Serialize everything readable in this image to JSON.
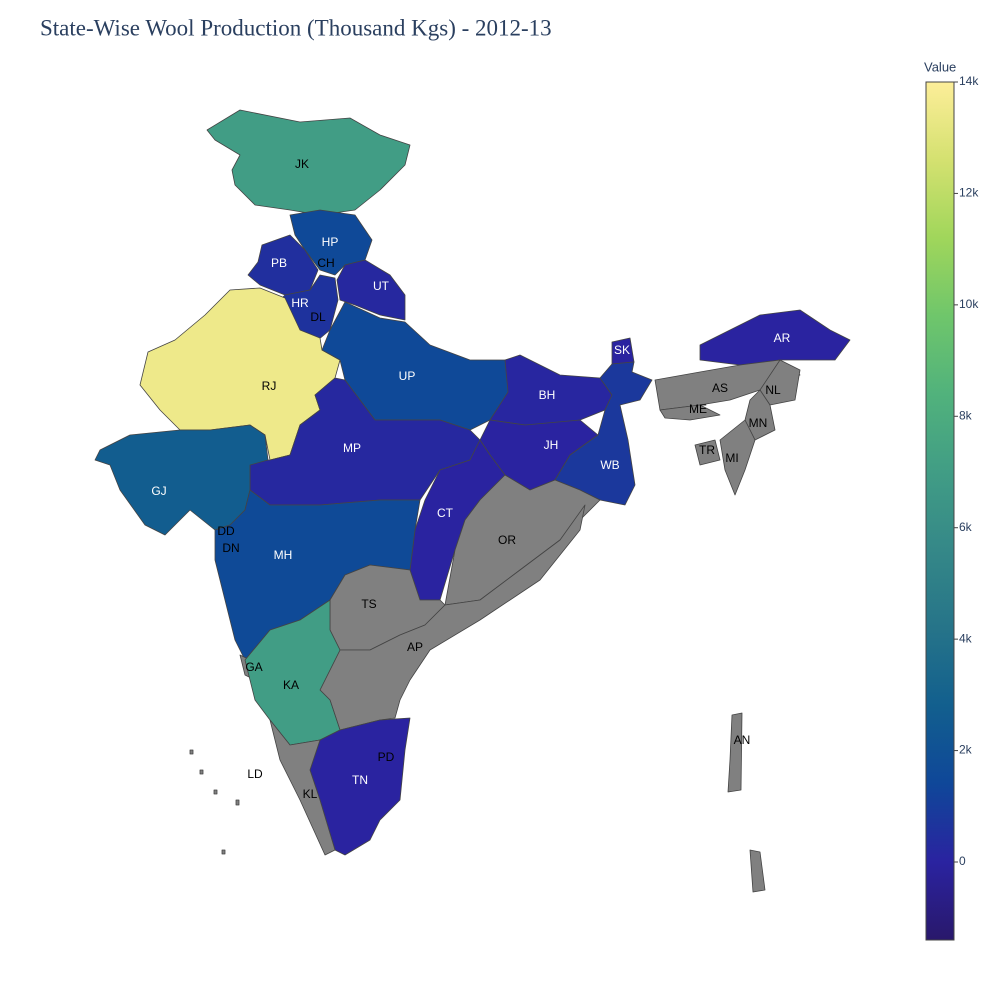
{
  "chart_data": {
    "type": "choropleth",
    "title": "State-Wise Wool Production (Thousand Kgs) - 2012-13",
    "colorbar_title": "Value",
    "zlim": [
      -1400,
      14000
    ],
    "zticks": [
      0,
      {
        "value": 2000,
        "label": "2k"
      },
      {
        "value": 4000,
        "label": "4k"
      },
      {
        "value": 6000,
        "label": "6k"
      },
      {
        "value": 8000,
        "label": "8k"
      },
      {
        "value": 10000,
        "label": "10k"
      },
      {
        "value": 12000,
        "label": "12k"
      },
      {
        "value": 14000,
        "label": "14k"
      }
    ],
    "colorscale": [
      "#29186b",
      "#2a23a0",
      "#0f4799",
      "#125f8e",
      "#267489",
      "#358888",
      "#419d85",
      "#51b27c",
      "#6fc66b",
      "#a0d65b",
      "#d4e170",
      "#fdee99"
    ],
    "missing_color": "#808080",
    "regions": [
      {
        "name": "JK",
        "value": 7000
      },
      {
        "name": "HP",
        "value": 1500
      },
      {
        "name": "PB",
        "value": 450
      },
      {
        "name": "CH",
        "value": null
      },
      {
        "name": "HR",
        "value": 600
      },
      {
        "name": "DL",
        "value": null
      },
      {
        "name": "UT",
        "value": 200
      },
      {
        "name": "RJ",
        "value": 13500
      },
      {
        "name": "UP",
        "value": 1500
      },
      {
        "name": "SK",
        "value": 0
      },
      {
        "name": "AR",
        "value": 0
      },
      {
        "name": "AS",
        "value": null
      },
      {
        "name": "NL",
        "value": null
      },
      {
        "name": "ME",
        "value": null
      },
      {
        "name": "MN",
        "value": null
      },
      {
        "name": "TR",
        "value": null
      },
      {
        "name": "MI",
        "value": null
      },
      {
        "name": "BH",
        "value": 100
      },
      {
        "name": "JH",
        "value": 0
      },
      {
        "name": "WB",
        "value": 800
      },
      {
        "name": "MP",
        "value": 200
      },
      {
        "name": "GJ",
        "value": 2700
      },
      {
        "name": "CT",
        "value": 0
      },
      {
        "name": "OR",
        "value": null
      },
      {
        "name": "DD",
        "value": null
      },
      {
        "name": "DN",
        "value": null
      },
      {
        "name": "MH",
        "value": 1600
      },
      {
        "name": "TS",
        "value": null
      },
      {
        "name": "AP",
        "value": null
      },
      {
        "name": "GA",
        "value": null
      },
      {
        "name": "KA",
        "value": 7000
      },
      {
        "name": "TN",
        "value": 0
      },
      {
        "name": "PD",
        "value": null
      },
      {
        "name": "KL",
        "value": null
      },
      {
        "name": "LD",
        "value": null
      },
      {
        "name": "AN",
        "value": null
      }
    ]
  }
}
